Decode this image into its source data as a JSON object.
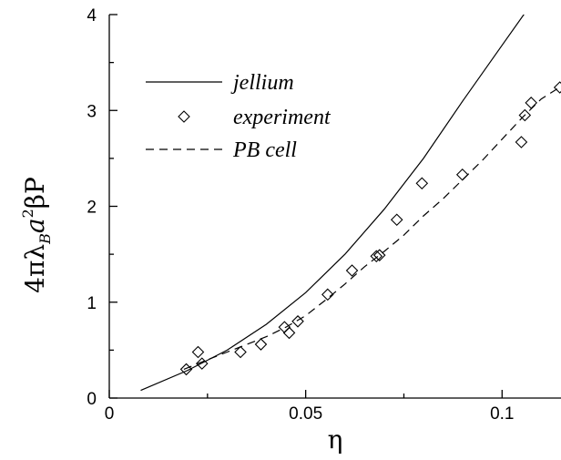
{
  "chart_data": {
    "type": "scatter",
    "xlabel": "η",
    "ylabel_parts": {
      "prefix": "4πλ",
      "subscript": "B",
      "middle": "a",
      "superscript": "2",
      "suffix": "βP"
    },
    "xlim": [
      0,
      0.115
    ],
    "ylim": [
      0,
      4
    ],
    "x_ticks": [
      0,
      0.05,
      0.1
    ],
    "x_tick_labels": [
      "0",
      "0.05",
      "0.1"
    ],
    "x_minor_ticks": [
      0.025,
      0.075
    ],
    "y_ticks": [
      0,
      1,
      2,
      3,
      4
    ],
    "y_tick_labels": [
      "0",
      "1",
      "2",
      "3",
      "4"
    ],
    "y_minor_ticks": [
      0.5,
      1.5,
      2.5,
      3.5
    ],
    "grid": false,
    "legend_placement": "top-left",
    "series": [
      {
        "name": "jellium",
        "style": "solid",
        "x": [
          0.008,
          0.02,
          0.03,
          0.04,
          0.05,
          0.06,
          0.07,
          0.08,
          0.09,
          0.1,
          0.109
        ],
        "y": [
          0.08,
          0.29,
          0.5,
          0.77,
          1.1,
          1.5,
          1.97,
          2.5,
          3.1,
          3.68,
          4.2
        ]
      },
      {
        "name": "experiment",
        "style": "marker",
        "marker": "diamond",
        "x": [
          0.0196,
          0.0226,
          0.0236,
          0.0334,
          0.0386,
          0.0446,
          0.0458,
          0.048,
          0.0556,
          0.0618,
          0.068,
          0.0688,
          0.0732,
          0.0796,
          0.0899,
          0.1049,
          0.1058,
          0.1074,
          0.1147
        ],
        "y": [
          0.3,
          0.48,
          0.36,
          0.48,
          0.56,
          0.74,
          0.68,
          0.8,
          1.08,
          1.33,
          1.48,
          1.49,
          1.86,
          2.24,
          2.33,
          2.67,
          2.95,
          3.08,
          3.24
        ]
      },
      {
        "name": "PB cell",
        "style": "dashed",
        "x": [
          0.019,
          0.025,
          0.03,
          0.035,
          0.04,
          0.045,
          0.05,
          0.055,
          0.06,
          0.065,
          0.07,
          0.075,
          0.08,
          0.085,
          0.09,
          0.095,
          0.1,
          0.105,
          0.11,
          0.115
        ],
        "y": [
          0.3,
          0.4,
          0.48,
          0.56,
          0.64,
          0.74,
          0.86,
          1.02,
          1.19,
          1.37,
          1.53,
          1.7,
          1.9,
          2.08,
          2.28,
          2.48,
          2.7,
          2.92,
          3.12,
          3.25
        ]
      }
    ]
  }
}
